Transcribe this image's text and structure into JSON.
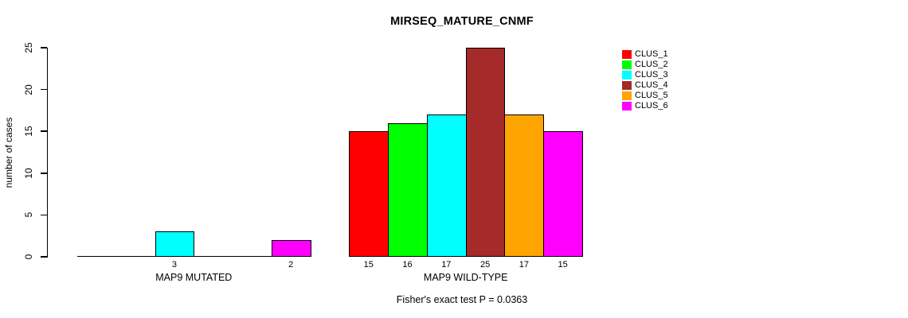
{
  "chart_data": {
    "type": "bar",
    "title": "MIRSEQ_MATURE_CNMF",
    "ylabel": "number of cases",
    "footnote": "Fisher's exact test P = 0.0363",
    "ylim": [
      0,
      25
    ],
    "yticks": [
      0,
      5,
      10,
      15,
      20,
      25
    ],
    "categories": [
      "MAP9 MUTATED",
      "MAP9 WILD-TYPE"
    ],
    "series": [
      {
        "name": "CLUS_1",
        "color": "#ff0000",
        "values": [
          0,
          15
        ]
      },
      {
        "name": "CLUS_2",
        "color": "#00ff00",
        "values": [
          0,
          16
        ]
      },
      {
        "name": "CLUS_3",
        "color": "#00ffff",
        "values": [
          3,
          17
        ]
      },
      {
        "name": "CLUS_4",
        "color": "#a52a2a",
        "values": [
          0,
          25
        ]
      },
      {
        "name": "CLUS_5",
        "color": "#ffa500",
        "values": [
          0,
          17
        ]
      },
      {
        "name": "CLUS_6",
        "color": "#ff00ff",
        "values": [
          2,
          15
        ]
      }
    ],
    "legend_position": "right",
    "value_labels": "nonzero",
    "grid": "off",
    "axis_color": "#000000",
    "background_color": "#ffffff"
  }
}
